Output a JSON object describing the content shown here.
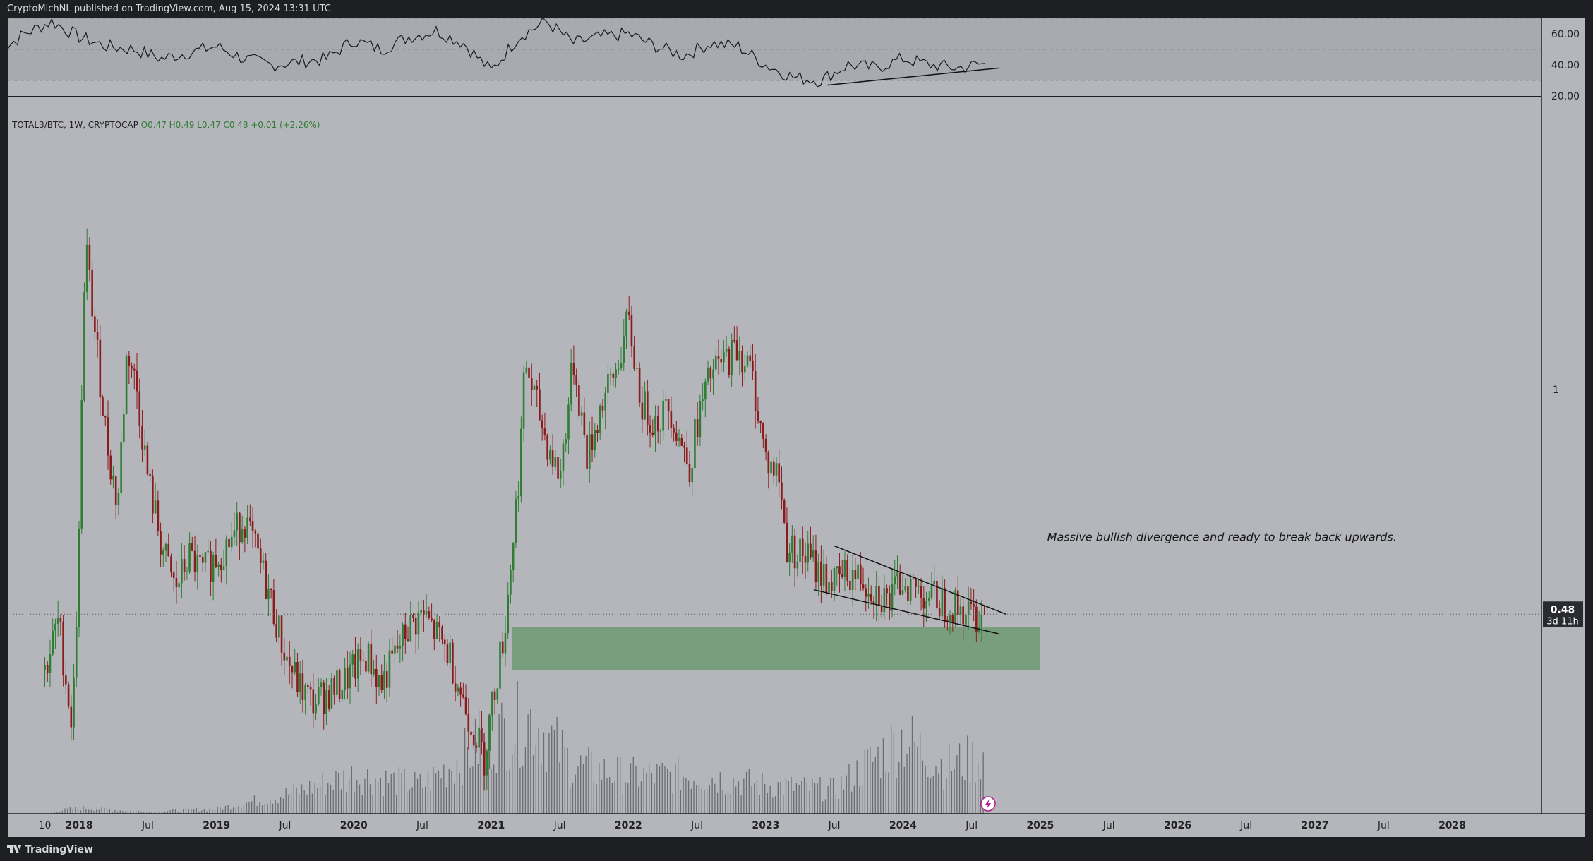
{
  "header": {
    "published_by": "CryptoMichNL published on TradingView.com, Aug 15, 2024 13:31 UTC"
  },
  "footer": {
    "brand": "TradingView"
  },
  "colors": {
    "background": "#b4b6bc",
    "frame": "#1e1f23",
    "up_candle": "#2e7d32",
    "down_candle": "#8b1a1a",
    "volume": "#6a6c72",
    "zone": "#6f9a73",
    "annotation": "#141414",
    "legend_green": "#2e7d32"
  },
  "chart_data": [
    {
      "type": "line",
      "panel": "RSI",
      "y_ticks": [
        "60.00",
        "40.00",
        "20.00"
      ],
      "bands": [
        30,
        50,
        70
      ],
      "ylim": [
        20,
        70
      ],
      "x": [
        2017.4,
        2017.6,
        2017.8,
        2018.0,
        2018.2,
        2018.4,
        2018.6,
        2018.8,
        2019.0,
        2019.2,
        2019.4,
        2019.6,
        2019.8,
        2020.0,
        2020.2,
        2020.4,
        2020.6,
        2020.8,
        2021.0,
        2021.2,
        2021.4,
        2021.6,
        2021.8,
        2022.0,
        2022.2,
        2022.4,
        2022.6,
        2022.8,
        2023.0,
        2023.2,
        2023.4,
        2023.6,
        2023.8,
        2024.0,
        2024.2,
        2024.4,
        2024.6
      ],
      "values": [
        47,
        60,
        68,
        58,
        52,
        50,
        44,
        48,
        52,
        44,
        40,
        42,
        44,
        56,
        50,
        58,
        62,
        54,
        36,
        58,
        68,
        54,
        58,
        60,
        52,
        46,
        54,
        52,
        40,
        32,
        30,
        40,
        38,
        44,
        40,
        38,
        41
      ],
      "divergence_line": {
        "x": [
          2023.45,
          2024.7
        ],
        "y": [
          27,
          38
        ]
      }
    },
    {
      "type": "candlestick",
      "panel": "price",
      "legend": {
        "symbol": "TOTAL3/BTC, 1W, CRYPTOCAP",
        "o": "O0.47",
        "h": "H0.49",
        "l": "L0.47",
        "c": "C0.48",
        "change": "+0.01 (+2.26%)"
      },
      "y_ticks": [
        "1"
      ],
      "y_scale": "log",
      "ylim": [
        0.25,
        2.6
      ],
      "last_price": "0.48",
      "countdown": "3d 11h",
      "x_ticks": [
        "10",
        "2018",
        "Jul",
        "2019",
        "Jul",
        "2020",
        "Jul",
        "2021",
        "Jul",
        "2022",
        "Jul",
        "2023",
        "Jul",
        "2024",
        "Jul",
        "2025",
        "Jul",
        "2026",
        "Jul",
        "2027",
        "Jul",
        "2028"
      ],
      "x_tick_dates": [
        2017.75,
        2018.0,
        2018.5,
        2019.0,
        2019.5,
        2020.0,
        2020.5,
        2021.0,
        2021.5,
        2022.0,
        2022.5,
        2023.0,
        2023.5,
        2024.0,
        2024.5,
        2025.0,
        2025.5,
        2026.0,
        2026.5,
        2027.0,
        2027.5,
        2028.0
      ],
      "x_range": [
        2017.48,
        2028.65
      ],
      "approx_close": [
        [
          2017.75,
          0.4
        ],
        [
          2017.85,
          0.47
        ],
        [
          2017.95,
          0.33
        ],
        [
          2018.0,
          0.62
        ],
        [
          2018.02,
          1.05
        ],
        [
          2018.05,
          1.6
        ],
        [
          2018.1,
          1.28
        ],
        [
          2018.2,
          0.85
        ],
        [
          2018.28,
          0.68
        ],
        [
          2018.35,
          1.15
        ],
        [
          2018.42,
          1.0
        ],
        [
          2018.5,
          0.75
        ],
        [
          2018.6,
          0.6
        ],
        [
          2018.7,
          0.52
        ],
        [
          2018.8,
          0.58
        ],
        [
          2018.9,
          0.55
        ],
        [
          2019.0,
          0.58
        ],
        [
          2019.1,
          0.61
        ],
        [
          2019.2,
          0.66
        ],
        [
          2019.3,
          0.58
        ],
        [
          2019.4,
          0.5
        ],
        [
          2019.5,
          0.42
        ],
        [
          2019.6,
          0.38
        ],
        [
          2019.7,
          0.36
        ],
        [
          2019.8,
          0.37
        ],
        [
          2019.9,
          0.38
        ],
        [
          2020.0,
          0.4
        ],
        [
          2020.1,
          0.42
        ],
        [
          2020.2,
          0.38
        ],
        [
          2020.3,
          0.42
        ],
        [
          2020.4,
          0.46
        ],
        [
          2020.5,
          0.48
        ],
        [
          2020.6,
          0.45
        ],
        [
          2020.7,
          0.42
        ],
        [
          2020.8,
          0.36
        ],
        [
          2020.9,
          0.32
        ],
        [
          2020.95,
          0.3
        ],
        [
          2021.0,
          0.35
        ],
        [
          2021.1,
          0.46
        ],
        [
          2021.2,
          0.75
        ],
        [
          2021.25,
          1.1
        ],
        [
          2021.3,
          1.0
        ],
        [
          2021.4,
          0.85
        ],
        [
          2021.5,
          0.75
        ],
        [
          2021.6,
          1.1
        ],
        [
          2021.7,
          0.8
        ],
        [
          2021.8,
          0.95
        ],
        [
          2021.9,
          1.05
        ],
        [
          2022.0,
          1.25
        ],
        [
          2022.1,
          0.95
        ],
        [
          2022.2,
          0.9
        ],
        [
          2022.3,
          0.95
        ],
        [
          2022.4,
          0.82
        ],
        [
          2022.45,
          0.78
        ],
        [
          2022.5,
          0.9
        ],
        [
          2022.6,
          1.05
        ],
        [
          2022.7,
          1.1
        ],
        [
          2022.8,
          1.15
        ],
        [
          2022.9,
          1.05
        ],
        [
          2023.0,
          0.8
        ],
        [
          2023.1,
          0.75
        ],
        [
          2023.15,
          0.6
        ],
        [
          2023.3,
          0.58
        ],
        [
          2023.4,
          0.55
        ],
        [
          2023.5,
          0.53
        ],
        [
          2023.6,
          0.55
        ],
        [
          2023.7,
          0.54
        ],
        [
          2023.8,
          0.52
        ],
        [
          2023.9,
          0.5
        ],
        [
          2024.0,
          0.54
        ],
        [
          2024.1,
          0.52
        ],
        [
          2024.2,
          0.51
        ],
        [
          2024.3,
          0.5
        ],
        [
          2024.4,
          0.49
        ],
        [
          2024.5,
          0.48
        ],
        [
          2024.6,
          0.48
        ]
      ],
      "wedge_upper": {
        "x": [
          2023.5,
          2024.75
        ],
        "y": [
          0.6,
          0.48
        ]
      },
      "wedge_lower": {
        "x": [
          2023.35,
          2024.7
        ],
        "y": [
          0.52,
          0.45
        ]
      },
      "support_zone": {
        "x": [
          2021.15,
          2025.0
        ],
        "y": [
          0.4,
          0.46
        ]
      },
      "annotation": "Massive bullish divergence and ready to break back upwards.",
      "annotation_pos": {
        "x": 2025.05,
        "y": 0.61
      }
    },
    {
      "type": "bar",
      "panel": "volume",
      "approx_relative_volume": [
        [
          2017.8,
          0.02
        ],
        [
          2018.0,
          0.06
        ],
        [
          2018.5,
          0.02
        ],
        [
          2019.0,
          0.05
        ],
        [
          2019.5,
          0.2
        ],
        [
          2020.0,
          0.4
        ],
        [
          2020.5,
          0.3
        ],
        [
          2021.0,
          0.8
        ],
        [
          2021.3,
          1.0
        ],
        [
          2021.6,
          0.5
        ],
        [
          2022.0,
          0.4
        ],
        [
          2022.5,
          0.4
        ],
        [
          2023.0,
          0.3
        ],
        [
          2023.5,
          0.25
        ],
        [
          2024.0,
          0.8
        ],
        [
          2024.3,
          0.5
        ],
        [
          2024.6,
          0.6
        ]
      ]
    }
  ]
}
